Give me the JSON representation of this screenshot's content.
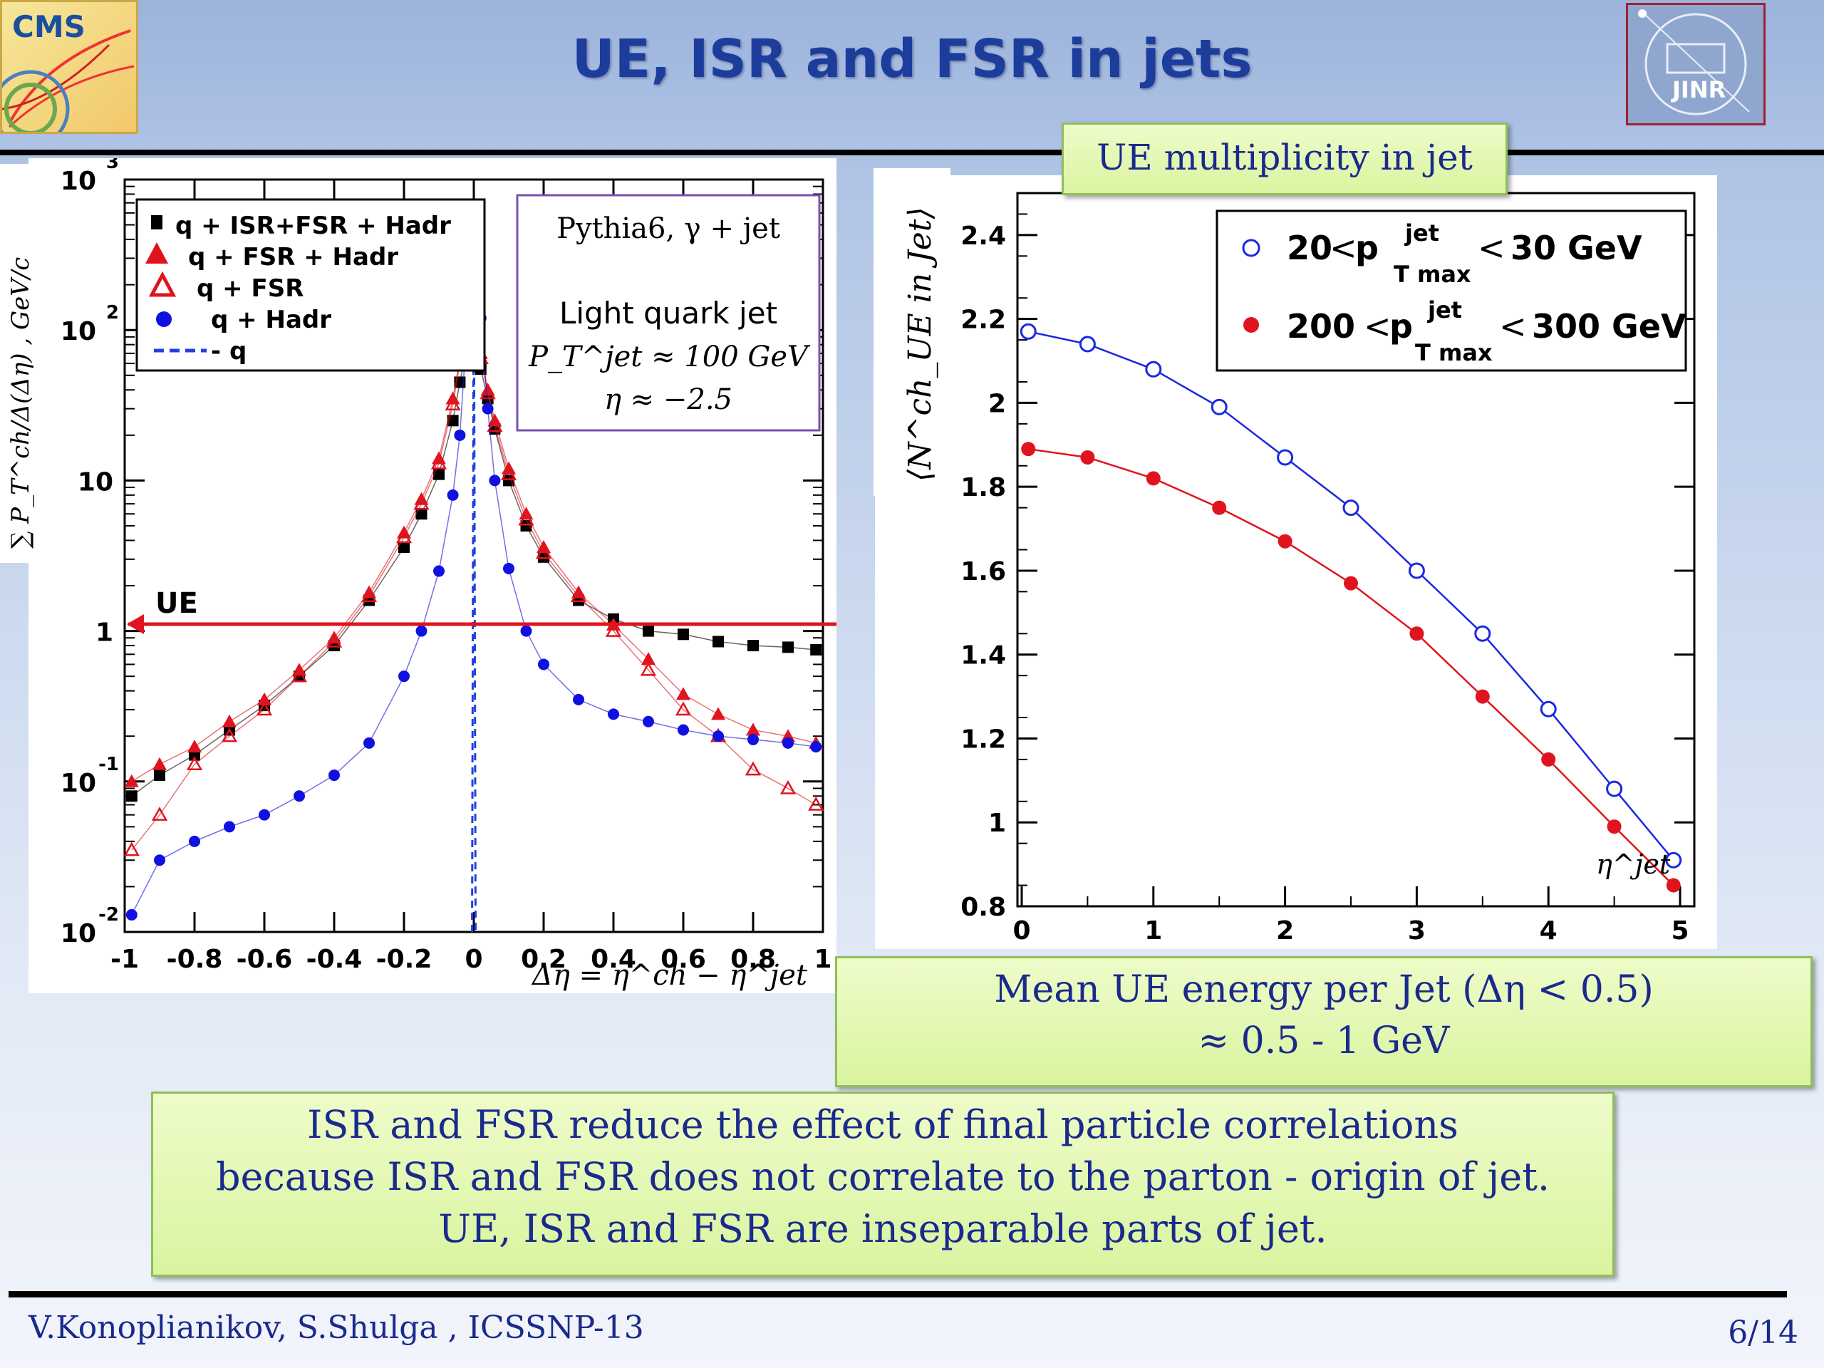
{
  "slide": {
    "title": "UE, ISR and FSR in jets",
    "logo_left_text": "CMS",
    "logo_right_text": "JINR",
    "footer_author": "V.Konoplianikov, S.Shulga , ICSSNP-13",
    "footer_page": "6/14",
    "ue_mult_label": "UE multiplicity in jet",
    "mean_ue_line1": "Mean UE energy per  Jet  (Δη < 0.5)",
    "mean_ue_line2": "≈ 0.5 - 1 GeV",
    "bottom_line1": "ISR and FSR reduce the effect of final particle correlations",
    "bottom_line2": "because ISR and FSR does not correlate to the parton - origin of jet.",
    "bottom_line3": "UE, ISR and FSR are inseparable parts of jet."
  },
  "chart_data": [
    {
      "type": "scatter",
      "ylabel": "∑ P_T^ch/Δ(Δη) , GeV/c",
      "xlabel": "Δη = η^ch − η^jet",
      "xlim": [
        -1,
        1
      ],
      "ylim": [
        0.01,
        1000
      ],
      "log_y": true,
      "x_ticks": [
        "-1",
        "-0.8",
        "-0.6",
        "-0.4",
        "-0.2",
        "0",
        "0.2",
        "0.4",
        "0.6",
        "0.8",
        "1"
      ],
      "y_ticks": [
        "10^3",
        "10^2",
        "10",
        "1",
        "10^-1",
        "10^-2"
      ],
      "legend": [
        "q + ISR+FSR + Hadr",
        "q + FSR + Hadr",
        "q + FSR",
        "q + Hadr",
        "- q"
      ],
      "annotation": {
        "line1": "Pythia6, γ + jet",
        "line2": "Light quark jet",
        "line3": "P_T^jet ≈ 100 GeV",
        "line4": "η ≈ −2.5"
      },
      "ue_label": "UE",
      "ue_level": 1,
      "series": [
        {
          "name": "q + ISR+FSR + Hadr",
          "color": "#000000",
          "marker": "square",
          "x": [
            -0.98,
            -0.9,
            -0.8,
            -0.7,
            -0.6,
            -0.5,
            -0.4,
            -0.3,
            -0.2,
            -0.15,
            -0.1,
            -0.06,
            -0.04,
            -0.02,
            0,
            0.02,
            0.04,
            0.06,
            0.1,
            0.15,
            0.2,
            0.3,
            0.4,
            0.5,
            0.6,
            0.7,
            0.8,
            0.9,
            0.98
          ],
          "y": [
            0.08,
            0.11,
            0.15,
            0.22,
            0.32,
            0.5,
            0.8,
            1.6,
            3.6,
            6,
            11,
            25,
            45,
            75,
            80,
            55,
            35,
            22,
            10,
            5,
            3.1,
            1.6,
            1.2,
            1,
            0.95,
            0.85,
            0.8,
            0.78,
            0.75
          ]
        },
        {
          "name": "q + FSR + Hadr",
          "color": "#e0141e",
          "marker": "triangle",
          "x": [
            -0.98,
            -0.9,
            -0.8,
            -0.7,
            -0.6,
            -0.5,
            -0.4,
            -0.3,
            -0.2,
            -0.15,
            -0.1,
            -0.06,
            -0.04,
            -0.02,
            0,
            0.02,
            0.04,
            0.06,
            0.1,
            0.15,
            0.2,
            0.3,
            0.4,
            0.5,
            0.6,
            0.7,
            0.8,
            0.9,
            0.98
          ],
          "y": [
            0.1,
            0.13,
            0.17,
            0.25,
            0.35,
            0.55,
            0.9,
            1.8,
            4.5,
            7.5,
            14,
            35,
            65,
            110,
            120,
            70,
            40,
            25,
            12,
            6,
            3.6,
            1.8,
            1.1,
            0.65,
            0.38,
            0.28,
            0.22,
            0.2,
            0.18
          ]
        },
        {
          "name": "q + FSR",
          "color": "#e0141e",
          "marker": "open-triangle",
          "x": [
            -0.98,
            -0.9,
            -0.8,
            -0.7,
            -0.6,
            -0.5,
            -0.4,
            -0.3,
            -0.2,
            -0.15,
            -0.1,
            -0.06,
            -0.04,
            -0.02,
            0,
            0.02,
            0.04,
            0.06,
            0.1,
            0.15,
            0.2,
            0.3,
            0.4,
            0.5,
            0.6,
            0.7,
            0.8,
            0.9,
            0.98
          ],
          "y": [
            0.035,
            0.06,
            0.13,
            0.2,
            0.3,
            0.5,
            0.85,
            1.7,
            4.2,
            7,
            13,
            32,
            60,
            100,
            110,
            65,
            38,
            23,
            11,
            5.5,
            3.3,
            1.7,
            1,
            0.55,
            0.3,
            0.2,
            0.12,
            0.09,
            0.07
          ]
        },
        {
          "name": "q + Hadr",
          "color": "#1010e0",
          "marker": "circle",
          "x": [
            -0.98,
            -0.9,
            -0.8,
            -0.7,
            -0.6,
            -0.5,
            -0.4,
            -0.3,
            -0.2,
            -0.15,
            -0.1,
            -0.06,
            -0.04,
            -0.02,
            0.0,
            0.02,
            0.04,
            0.06,
            0.1,
            0.15,
            0.2,
            0.3,
            0.4,
            0.5,
            0.6,
            0.7,
            0.8,
            0.9,
            0.98
          ],
          "y": [
            0.013,
            0.03,
            0.04,
            0.05,
            0.06,
            0.08,
            0.11,
            0.18,
            0.5,
            1,
            2.5,
            8,
            20,
            100,
            200,
            120,
            30,
            10,
            2.6,
            1,
            0.6,
            0.35,
            0.28,
            0.25,
            0.22,
            0.2,
            0.19,
            0.18,
            0.17
          ]
        },
        {
          "name": "- q",
          "color": "#2040e0",
          "marker": "dashed",
          "x": [
            -0.005,
            0.0,
            0.005
          ],
          "y": [
            0.01,
            500,
            0.01
          ]
        }
      ]
    },
    {
      "type": "line",
      "ylabel": "⟨N^ch_UE in Jet⟩",
      "xlabel": "η^jet",
      "xlim": [
        0,
        5
      ],
      "ylim": [
        0.8,
        2.5
      ],
      "x_ticks": [
        "0",
        "1",
        "2",
        "3",
        "4",
        "5"
      ],
      "y_ticks": [
        "0.8",
        "1",
        "1.2",
        "1.4",
        "1.6",
        "1.8",
        "2",
        "2.2",
        "2.4"
      ],
      "legend": [
        {
          "lo": "20",
          "hi": "30 GeV",
          "sup": "jet",
          "sub": "T max"
        },
        {
          "lo": "200",
          "hi": "300 GeV",
          "sup": "jet",
          "sub": "T max"
        }
      ],
      "legend_p": "p",
      "series": [
        {
          "name": "20 < p_T max^jet < 30 GeV",
          "color": "#1a28e0",
          "marker": "open-circle",
          "x": [
            0.05,
            0.5,
            1.0,
            1.5,
            2.0,
            2.5,
            3.0,
            3.5,
            4.0,
            4.5,
            4.95
          ],
          "y": [
            2.17,
            2.14,
            2.08,
            1.99,
            1.87,
            1.75,
            1.6,
            1.45,
            1.27,
            1.08,
            0.91
          ]
        },
        {
          "name": "200 < p_T max^jet < 300 GeV",
          "color": "#e0141e",
          "marker": "filled-circle",
          "x": [
            0.05,
            0.5,
            1.0,
            1.5,
            2.0,
            2.5,
            3.0,
            3.5,
            4.0,
            4.5,
            4.95
          ],
          "y": [
            1.89,
            1.87,
            1.82,
            1.75,
            1.67,
            1.57,
            1.45,
            1.3,
            1.15,
            0.99,
            0.85
          ]
        }
      ]
    }
  ]
}
